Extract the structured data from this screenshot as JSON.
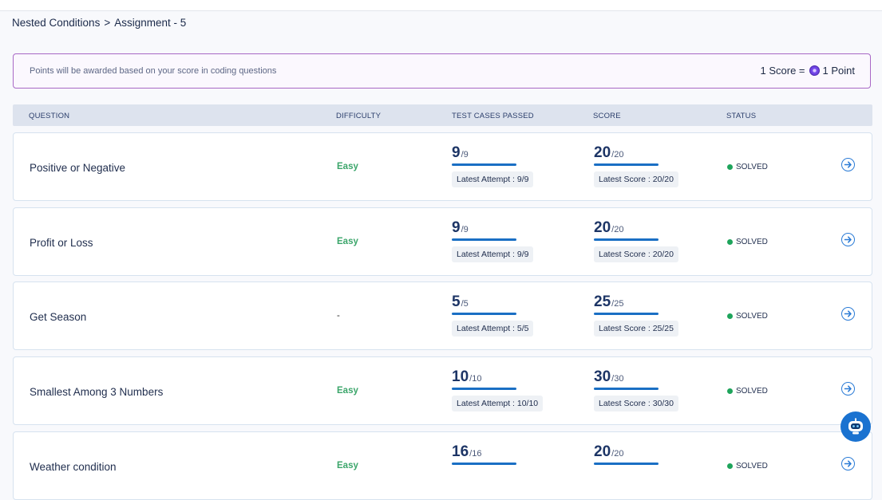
{
  "breadcrumb": {
    "parent": "Nested Conditions",
    "separator": ">",
    "current": "Assignment - 5"
  },
  "info": {
    "text": "Points will be awarded based on your score in coding questions",
    "left_label": "1 Score =",
    "right_label": "1 Point"
  },
  "columns": {
    "question": "QUESTION",
    "difficulty": "DIFFICULTY",
    "tests": "TEST CASES PASSED",
    "score": "SCORE",
    "status": "STATUS"
  },
  "rows": [
    {
      "question": "Positive or Negative",
      "difficulty": "Easy",
      "tests_big": "9",
      "tests_small": "/9",
      "tests_attempt": "Latest Attempt : 9/9",
      "score_big": "20",
      "score_small": "/20",
      "score_latest": "Latest Score : 20/20",
      "status": "SOLVED"
    },
    {
      "question": "Profit or Loss",
      "difficulty": "Easy",
      "tests_big": "9",
      "tests_small": "/9",
      "tests_attempt": "Latest Attempt : 9/9",
      "score_big": "20",
      "score_small": "/20",
      "score_latest": "Latest Score : 20/20",
      "status": "SOLVED"
    },
    {
      "question": "Get Season",
      "difficulty": "-",
      "tests_big": "5",
      "tests_small": "/5",
      "tests_attempt": "Latest Attempt : 5/5",
      "score_big": "25",
      "score_small": "/25",
      "score_latest": "Latest Score : 25/25",
      "status": "SOLVED"
    },
    {
      "question": "Smallest Among 3 Numbers",
      "difficulty": "Easy",
      "tests_big": "10",
      "tests_small": "/10",
      "tests_attempt": "Latest Attempt : 10/10",
      "score_big": "30",
      "score_small": "/30",
      "score_latest": "Latest Score : 30/30",
      "status": "SOLVED"
    },
    {
      "question": "Weather condition",
      "difficulty": "Easy",
      "tests_big": "16",
      "tests_small": "/16",
      "tests_attempt": "",
      "score_big": "20",
      "score_small": "/20",
      "score_latest": "",
      "status": "SOLVED"
    }
  ],
  "colors": {
    "accent": "#1a6fc4",
    "easy": "#3ca66b",
    "solved": "#1ea45b",
    "info_border": "#a868c6"
  },
  "icons": {
    "row_action": "arrow-right-circle-icon",
    "coin": "points-coin-icon",
    "assistant": "robot-assistant-icon"
  }
}
